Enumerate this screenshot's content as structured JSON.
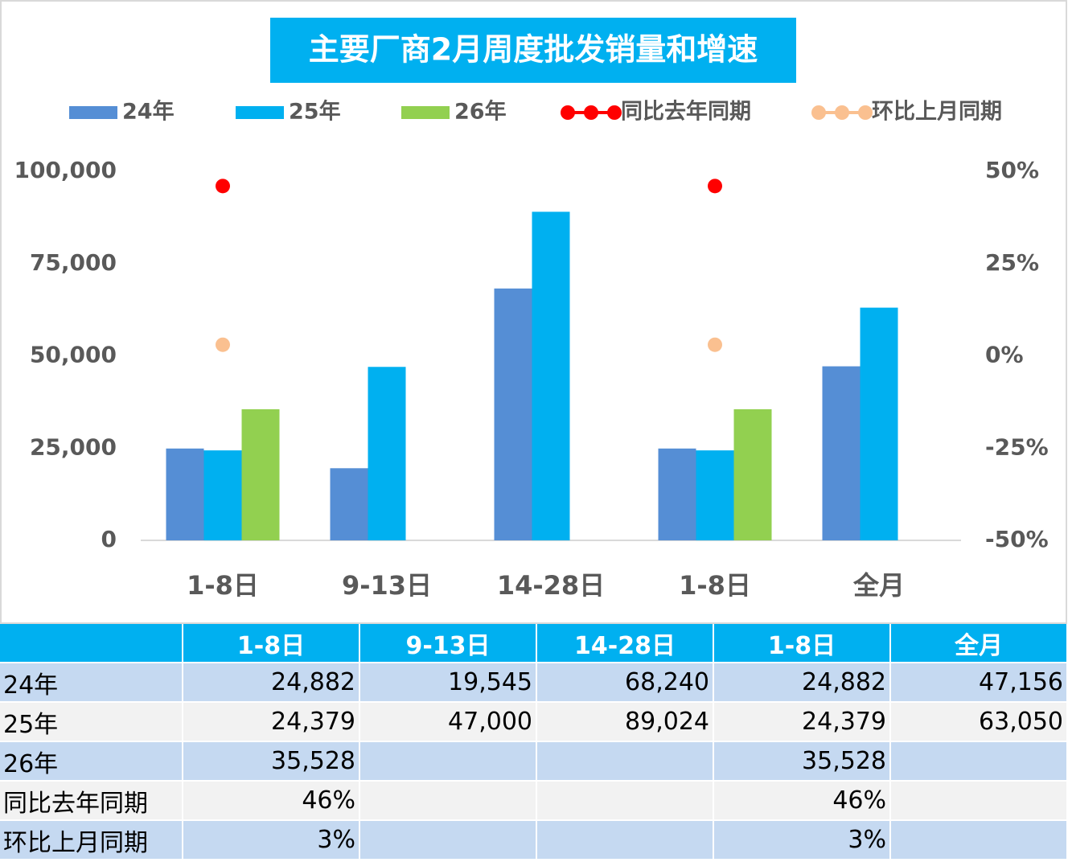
{
  "chart_data": {
    "type": "bar",
    "title": "主要厂商2月周度批发销量和增速",
    "categories": [
      "1-8日",
      "9-13日",
      "14-28日",
      "1-8日",
      "全月"
    ],
    "series": [
      {
        "name": "24年",
        "color": "#558ed5",
        "values": [
          24882,
          19545,
          68240,
          24882,
          47156
        ],
        "value_labels": [
          "24,882",
          "19,545",
          "68,240",
          "24,882",
          "47,156"
        ]
      },
      {
        "name": "25年",
        "color": "#00b0f0",
        "values": [
          24379,
          47000,
          89024,
          24379,
          63050
        ],
        "value_labels": [
          "24,379",
          "47,000",
          "89,024",
          "24,379",
          "63,050"
        ]
      },
      {
        "name": "26年",
        "color": "#92d050",
        "values": [
          35528,
          null,
          null,
          35528,
          null
        ],
        "value_labels": [
          "35,528",
          null,
          null,
          "35,528",
          null
        ]
      },
      {
        "name": "同比去年同期",
        "type": "scatter",
        "axis": "y2",
        "color": "#ff0000",
        "values": [
          46,
          null,
          null,
          46,
          null
        ],
        "value_labels": [
          "46%",
          null,
          null,
          "46%",
          null
        ]
      },
      {
        "name": "环比上月同期",
        "type": "scatter",
        "axis": "y2",
        "color": "#fac090",
        "values": [
          3,
          null,
          null,
          3,
          null
        ],
        "value_labels": [
          "3%",
          null,
          null,
          "3%",
          null
        ]
      }
    ],
    "ylim": [
      0,
      100000
    ],
    "yticks": [
      {
        "value": 100000,
        "label": "100,000"
      },
      {
        "value": 75000,
        "label": "75,000"
      },
      {
        "value": 50000,
        "label": "50,000"
      },
      {
        "value": 25000,
        "label": "25,000"
      },
      0
    ],
    "y2lim": [
      -50,
      50
    ],
    "y2ticks": [
      {
        "value": 50,
        "label": "50%"
      },
      {
        "value": 25,
        "label": "25%"
      },
      {
        "value": 0,
        "label": "0%"
      },
      {
        "value": -25,
        "label": "-25%"
      },
      {
        "value": -50,
        "label": "-50%"
      }
    ],
    "grid": false,
    "legend": "top",
    "data_table": true
  }
}
